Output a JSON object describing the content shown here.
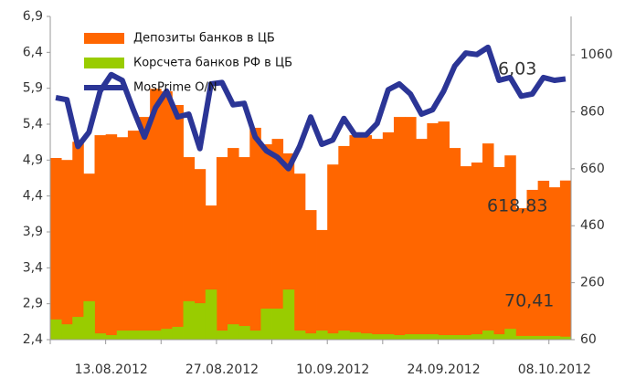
{
  "chart_data": {
    "type": "bar_line",
    "categories": [
      null,
      null,
      null,
      null,
      null,
      "13.08.2012",
      null,
      null,
      null,
      null,
      null,
      null,
      null,
      null,
      null,
      "27.08.2012",
      null,
      null,
      null,
      null,
      null,
      null,
      null,
      null,
      null,
      "10.09.2012",
      null,
      null,
      null,
      null,
      null,
      null,
      null,
      null,
      null,
      "24.09.2012",
      null,
      null,
      null,
      null,
      null,
      null,
      null,
      null,
      null,
      "08.10.2012",
      null
    ],
    "series": [
      {
        "name": "Депозиты банков в ЦБ",
        "color": "#ff6600",
        "kind": "bar",
        "axis": "y2",
        "values": [
          698,
          691,
          755,
          643,
          778,
          781,
          771,
          794,
          842,
          941,
          932,
          884,
          701,
          659,
          531,
          701,
          733,
          701,
          804,
          746,
          765,
          714,
          643,
          515,
          445,
          675,
          740,
          778,
          778,
          765,
          788,
          842,
          842,
          765,
          820,
          826,
          733,
          669,
          682,
          749,
          666,
          707,
          522,
          586,
          618,
          595,
          618.83
        ]
      },
      {
        "name": "Корсчета банков РФ в ЦБ",
        "color": "#99cc00",
        "kind": "bar",
        "axis": "y2",
        "values": [
          131,
          114,
          140,
          195,
          82,
          76,
          92,
          92,
          92,
          92,
          98,
          105,
          195,
          188,
          236,
          92,
          114,
          108,
          92,
          169,
          169,
          236,
          92,
          82,
          92,
          82,
          92,
          86,
          82,
          79,
          79,
          76,
          79,
          79,
          79,
          76,
          76,
          76,
          79,
          92,
          79,
          98,
          73,
          73,
          73,
          73,
          70.41
        ]
      },
      {
        "name": "MosPrime O/N",
        "color": "#2b3596",
        "kind": "line",
        "values": [
          5.77,
          5.74,
          5.09,
          5.29,
          5.86,
          6.09,
          6.01,
          5.6,
          5.22,
          5.63,
          5.86,
          5.5,
          5.54,
          5.06,
          5.96,
          5.98,
          5.67,
          5.69,
          5.22,
          5.03,
          4.94,
          4.78,
          5.09,
          5.5,
          5.12,
          5.18,
          5.48,
          5.25,
          5.25,
          5.41,
          5.88,
          5.96,
          5.82,
          5.54,
          5.6,
          5.86,
          6.21,
          6.39,
          6.37,
          6.47,
          6.01,
          6.05,
          5.79,
          5.82,
          6.05,
          6.01,
          6.03
        ]
      }
    ],
    "ylim": [
      2.4,
      6.9
    ],
    "yticks": [
      {
        "value": 2.4,
        "label": "2,4"
      },
      {
        "value": 2.9,
        "label": "2,9"
      },
      {
        "value": 3.4,
        "label": "3,4"
      },
      {
        "value": 3.9,
        "label": "3,9"
      },
      {
        "value": 4.4,
        "label": "4,4"
      },
      {
        "value": 4.9,
        "label": "4,9"
      },
      {
        "value": 5.4,
        "label": "5,4"
      },
      {
        "value": 5.9,
        "label": "5,9"
      },
      {
        "value": 6.4,
        "label": "6,4"
      },
      {
        "value": 6.9,
        "label": "6,9"
      }
    ],
    "y2lim": [
      60,
      1195
    ],
    "y2ticks": [
      60,
      260,
      460,
      660,
      860,
      1060
    ],
    "annotations": [
      "6,03",
      "618,83",
      "70,41"
    ],
    "legend": "top-left",
    "grid": false
  }
}
